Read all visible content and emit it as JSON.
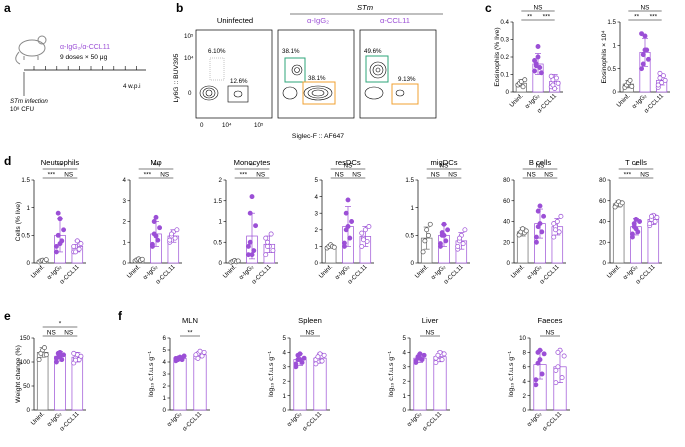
{
  "figure": {
    "panel_letters": [
      "a",
      "b",
      "c",
      "d",
      "e",
      "f"
    ],
    "colors": {
      "uninf": "#666666",
      "igg": "#9b4fd6",
      "ccl11": "#9b4fd6",
      "gate_green": "#2ea57a",
      "gate_orange": "#f0a030",
      "black": "#000000"
    }
  },
  "panel_a": {
    "treatment": "α-IgG₂/α-CCL11",
    "dosing": "9 doses × 50 μg",
    "infection_line1": "STm infection",
    "infection_line2": "10⁸ CFU",
    "endpoint": "4 w.p.i"
  },
  "panel_b": {
    "header_stm": "STm",
    "columns": [
      "Uninfected",
      "α-IgG₂",
      "α-CCL11"
    ],
    "y_axis": "Ly6G :: BUV395",
    "x_axis": "Siglec-F :: AF647",
    "x_ticks": [
      "0",
      "10⁴",
      "10⁵"
    ],
    "y_ticks": [
      "10⁵",
      "10⁴",
      "0"
    ],
    "gates": [
      {
        "top": "6.10%",
        "bottom": "12.6%"
      },
      {
        "top": "38.1%",
        "bottom": "38.1%"
      },
      {
        "top": "49.6%",
        "bottom": "9.13%"
      }
    ]
  },
  "chart_data": [
    {
      "id": "c1",
      "type": "bar",
      "title": "",
      "ylabel": "Eosinophils (% live)",
      "ylim": [
        0,
        0.4
      ],
      "yticks": [
        0,
        0.1,
        0.2,
        0.3,
        0.4
      ],
      "categories": [
        "Uninf.",
        "α-IgG₂",
        "α-CCL11"
      ],
      "values": [
        0.05,
        0.16,
        0.06
      ],
      "errors": [
        0.02,
        0.06,
        0.04
      ],
      "points": [
        [
          0.04,
          0.05,
          0.06,
          0.03,
          0.07
        ],
        [
          0.12,
          0.16,
          0.26,
          0.14,
          0.11,
          0.18,
          0.15,
          0.2
        ],
        [
          0.03,
          0.07,
          0.02,
          0.08,
          0.05,
          0.09,
          0.04
        ]
      ],
      "sig": [
        {
          "from": 0,
          "to": 2,
          "label": "NS",
          "level": 2
        },
        {
          "from": 0,
          "to": 1,
          "label": "**",
          "level": 1
        },
        {
          "from": 1,
          "to": 2,
          "label": "***",
          "level": 1
        }
      ]
    },
    {
      "id": "c2",
      "type": "bar",
      "title": "",
      "ylabel": "Eosinophils × 10⁴",
      "ylim": [
        0,
        1.5
      ],
      "yticks": [
        0,
        0.5,
        1.0,
        1.5
      ],
      "categories": [
        "Uninf.",
        "α-IgG₂",
        "α-CCL11"
      ],
      "values": [
        0.17,
        0.85,
        0.25
      ],
      "errors": [
        0.08,
        0.3,
        0.1
      ],
      "points": [
        [
          0.1,
          0.15,
          0.2,
          0.25,
          0.12
        ],
        [
          0.5,
          0.8,
          1.2,
          0.9,
          0.7,
          1.25,
          0.6,
          0.9
        ],
        [
          0.1,
          0.3,
          0.2,
          0.35,
          0.25,
          0.15,
          0.4
        ]
      ],
      "sig": [
        {
          "from": 0,
          "to": 2,
          "label": "NS",
          "level": 2
        },
        {
          "from": 0,
          "to": 1,
          "label": "**",
          "level": 1
        },
        {
          "from": 1,
          "to": 2,
          "label": "***",
          "level": 1
        }
      ]
    },
    {
      "id": "d1",
      "type": "bar",
      "title": "Neutrophils",
      "ylabel": "Cells (% live)",
      "ylim": [
        0,
        1.5
      ],
      "yticks": [
        0,
        0.5,
        1.0,
        1.5
      ],
      "categories": [
        "Uninf.",
        "α-IgG₂",
        "α-CCL11"
      ],
      "values": [
        0.04,
        0.5,
        0.3
      ],
      "errors": [
        0.02,
        0.3,
        0.1
      ],
      "points": [
        [
          0.02,
          0.04,
          0.05,
          0.03,
          0.06
        ],
        [
          0.2,
          0.5,
          0.8,
          0.4,
          0.6,
          0.3,
          0.9,
          0.35
        ],
        [
          0.2,
          0.3,
          0.4,
          0.25,
          0.35,
          0.3,
          0.2
        ]
      ],
      "sig": [
        {
          "from": 0,
          "to": 2,
          "label": "**",
          "level": 2
        },
        {
          "from": 0,
          "to": 1,
          "label": "***",
          "level": 1
        },
        {
          "from": 1,
          "to": 2,
          "label": "NS",
          "level": 1
        }
      ]
    },
    {
      "id": "d2",
      "type": "bar",
      "title": "Mφ",
      "ylabel": "",
      "ylim": [
        0,
        4
      ],
      "yticks": [
        0,
        1,
        2,
        3,
        4
      ],
      "categories": [
        "Uninf.",
        "α-IgG₂",
        "α-CCL11"
      ],
      "values": [
        0.15,
        1.4,
        1.3
      ],
      "errors": [
        0.1,
        0.6,
        0.3
      ],
      "points": [
        [
          0.1,
          0.15,
          0.2,
          0.12,
          0.18
        ],
        [
          0.9,
          1.4,
          2.2,
          1.1,
          1.7,
          0.8,
          2.0,
          1.3
        ],
        [
          1.0,
          1.3,
          1.5,
          1.2,
          1.6,
          1.1,
          1.4
        ]
      ],
      "sig": [
        {
          "from": 0,
          "to": 2,
          "label": "**",
          "level": 2
        },
        {
          "from": 0,
          "to": 1,
          "label": "***",
          "level": 1
        },
        {
          "from": 1,
          "to": 2,
          "label": "NS",
          "level": 1
        }
      ]
    },
    {
      "id": "d3",
      "type": "bar",
      "title": "Monocytes",
      "ylabel": "",
      "ylim": [
        0,
        2.0
      ],
      "yticks": [
        0,
        0.5,
        1.0,
        1.5,
        2.0
      ],
      "categories": [
        "Uninf.",
        "α-IgG₂",
        "α-CCL11"
      ],
      "values": [
        0.04,
        0.65,
        0.45
      ],
      "errors": [
        0.02,
        0.55,
        0.2
      ],
      "points": [
        [
          0.02,
          0.04,
          0.06,
          0.03,
          0.05
        ],
        [
          0.2,
          0.5,
          1.6,
          0.3,
          0.9,
          0.4,
          1.2,
          0.2
        ],
        [
          0.2,
          0.5,
          0.4,
          0.7,
          0.3,
          0.6,
          0.4
        ]
      ],
      "sig": [
        {
          "from": 0,
          "to": 2,
          "label": "**",
          "level": 2
        },
        {
          "from": 0,
          "to": 1,
          "label": "***",
          "level": 1
        },
        {
          "from": 1,
          "to": 2,
          "label": "NS",
          "level": 1
        }
      ]
    },
    {
      "id": "d4",
      "type": "bar",
      "title": "resDCs",
      "ylabel": "",
      "ylim": [
        0,
        5
      ],
      "yticks": [
        0,
        1,
        2,
        3,
        4,
        5
      ],
      "categories": [
        "Uninf.",
        "α-IgG₂",
        "α-CCL11"
      ],
      "values": [
        1.0,
        2.2,
        1.6
      ],
      "errors": [
        0.1,
        1.2,
        0.6
      ],
      "points": [
        [
          0.9,
          1.0,
          1.1,
          1.0,
          0.95
        ],
        [
          1.0,
          2.0,
          3.8,
          1.5,
          2.5,
          1.2,
          3.0,
          2.2
        ],
        [
          1.0,
          1.5,
          2.0,
          1.3,
          2.2,
          1.8,
          1.4
        ]
      ],
      "sig": [
        {
          "from": 0,
          "to": 2,
          "label": "NS",
          "level": 2
        },
        {
          "from": 0,
          "to": 1,
          "label": "NS",
          "level": 1
        },
        {
          "from": 1,
          "to": 2,
          "label": "NS",
          "level": 1
        }
      ]
    },
    {
      "id": "d5",
      "type": "bar",
      "title": "migDCs",
      "ylabel": "",
      "ylim": [
        0,
        1.5
      ],
      "yticks": [
        0,
        0.5,
        1.0,
        1.5
      ],
      "categories": [
        "Uninf.",
        "α-IgG₂",
        "α-CCL11"
      ],
      "values": [
        0.45,
        0.5,
        0.4
      ],
      "errors": [
        0.2,
        0.2,
        0.15
      ],
      "points": [
        [
          0.2,
          0.4,
          0.6,
          0.5,
          0.7
        ],
        [
          0.3,
          0.5,
          0.7,
          0.4,
          0.6,
          0.35,
          0.55,
          0.5
        ],
        [
          0.25,
          0.4,
          0.5,
          0.35,
          0.6,
          0.3,
          0.45
        ]
      ],
      "sig": [
        {
          "from": 0,
          "to": 2,
          "label": "NS",
          "level": 2
        },
        {
          "from": 0,
          "to": 1,
          "label": "NS",
          "level": 1
        },
        {
          "from": 1,
          "to": 2,
          "label": "NS",
          "level": 1
        }
      ]
    },
    {
      "id": "d6",
      "type": "bar",
      "title": "B cells",
      "ylabel": "",
      "ylim": [
        0,
        80
      ],
      "yticks": [
        0,
        20,
        40,
        60,
        80
      ],
      "categories": [
        "Uninf.",
        "α-IgG₂",
        "α-CCL11"
      ],
      "values": [
        30,
        38,
        35
      ],
      "errors": [
        4,
        14,
        8
      ],
      "points": [
        [
          27,
          30,
          33,
          29,
          31
        ],
        [
          20,
          35,
          55,
          30,
          45,
          25,
          50,
          38
        ],
        [
          25,
          35,
          40,
          30,
          45,
          38,
          32
        ]
      ],
      "sig": [
        {
          "from": 0,
          "to": 2,
          "label": "NS",
          "level": 2
        },
        {
          "from": 0,
          "to": 1,
          "label": "NS",
          "level": 1
        },
        {
          "from": 1,
          "to": 2,
          "label": "NS",
          "level": 1
        }
      ]
    },
    {
      "id": "d7",
      "type": "bar",
      "title": "T cells",
      "ylabel": "",
      "ylim": [
        0,
        80
      ],
      "yticks": [
        0,
        20,
        40,
        60,
        80
      ],
      "categories": [
        "Uninf.",
        "α-IgG₂",
        "α-CCL11"
      ],
      "values": [
        57,
        35,
        42
      ],
      "errors": [
        3,
        8,
        5
      ],
      "points": [
        [
          54,
          57,
          59,
          56,
          58
        ],
        [
          25,
          35,
          42,
          30,
          40,
          28,
          38,
          33
        ],
        [
          36,
          42,
          46,
          40,
          44,
          38,
          45
        ]
      ],
      "sig": [
        {
          "from": 0,
          "to": 2,
          "label": "*",
          "level": 2
        },
        {
          "from": 0,
          "to": 1,
          "label": "***",
          "level": 1
        },
        {
          "from": 1,
          "to": 2,
          "label": "NS",
          "level": 1
        }
      ]
    },
    {
      "id": "e1",
      "type": "bar",
      "title": "",
      "ylabel": "Weight change (%)",
      "ylim": [
        0,
        150
      ],
      "yticks": [
        0,
        50,
        100,
        150
      ],
      "categories": [
        "Uninf.",
        "α-IgG₂",
        "α-CCL11"
      ],
      "values": [
        120,
        112,
        110
      ],
      "errors": [
        10,
        10,
        10
      ],
      "points": [
        [
          105,
          118,
          125,
          130,
          115
        ],
        [
          100,
          110,
          120,
          105,
          115,
          108,
          118,
          112
        ],
        [
          98,
          108,
          115,
          105,
          112,
          118,
          104
        ]
      ],
      "sig": [
        {
          "from": 0,
          "to": 2,
          "label": "*",
          "level": 2
        },
        {
          "from": 0,
          "to": 1,
          "label": "NS",
          "level": 1
        },
        {
          "from": 1,
          "to": 2,
          "label": "NS",
          "level": 1
        }
      ]
    },
    {
      "id": "f1",
      "type": "bar",
      "title": "MLN",
      "ylabel": "log₁₀ c.f.u.s g⁻¹",
      "ylim": [
        0,
        6
      ],
      "yticks": [
        0,
        1,
        2,
        3,
        4,
        5,
        6
      ],
      "categories": [
        "α-IgG₂",
        "α-CCL11"
      ],
      "values": [
        4.3,
        4.6
      ],
      "errors": [
        0.2,
        0.25
      ],
      "points": [
        [
          4.1,
          4.3,
          4.4,
          4.2,
          4.5,
          4.3,
          4.2,
          4.4
        ],
        [
          4.4,
          4.7,
          4.9,
          4.5,
          4.8,
          4.6,
          4.3
        ]
      ],
      "sig": [
        {
          "from": 0,
          "to": 1,
          "label": "**",
          "level": 1
        }
      ]
    },
    {
      "id": "f2",
      "type": "bar",
      "title": "Spleen",
      "ylabel": "log₁₀ c.f.u.s g⁻¹",
      "ylim": [
        0,
        5
      ],
      "yticks": [
        0,
        1,
        2,
        3,
        4,
        5
      ],
      "categories": [
        "α-IgG₂",
        "α-CCL11"
      ],
      "values": [
        3.5,
        3.6
      ],
      "errors": [
        0.4,
        0.35
      ],
      "points": [
        [
          3.0,
          3.5,
          3.9,
          3.3,
          3.6,
          3.2,
          3.8,
          3.5
        ],
        [
          3.2,
          3.6,
          3.9,
          3.4,
          3.8,
          3.5,
          3.7
        ]
      ],
      "sig": [
        {
          "from": 0,
          "to": 1,
          "label": "NS",
          "level": 1
        }
      ]
    },
    {
      "id": "f3",
      "type": "bar",
      "title": "Liver",
      "ylabel": "log₁₀ c.f.u.s g⁻¹",
      "ylim": [
        0,
        5
      ],
      "yticks": [
        0,
        1,
        2,
        3,
        4,
        5
      ],
      "categories": [
        "α-IgG₂",
        "α-CCL11"
      ],
      "values": [
        3.6,
        3.7
      ],
      "errors": [
        0.3,
        0.35
      ],
      "points": [
        [
          3.3,
          3.6,
          3.9,
          3.5,
          3.8,
          3.4,
          3.7,
          3.6
        ],
        [
          3.3,
          3.7,
          4.0,
          3.5,
          3.9,
          3.6,
          3.8
        ]
      ],
      "sig": [
        {
          "from": 0,
          "to": 1,
          "label": "NS",
          "level": 1
        }
      ]
    },
    {
      "id": "f4",
      "type": "bar",
      "title": "Faeces",
      "ylabel": "log₁₀ c.f.u.s g⁻¹",
      "ylim": [
        0,
        10
      ],
      "yticks": [
        0,
        2,
        4,
        6,
        8,
        10
      ],
      "categories": [
        "α-IgG₂",
        "α-CCL11"
      ],
      "values": [
        6.3,
        6.0
      ],
      "errors": [
        2.0,
        2.2
      ],
      "points": [
        [
          3.5,
          6.5,
          8.3,
          5.0,
          7.8,
          4.2,
          8.0,
          7.0
        ],
        [
          3.8,
          6.0,
          8.3,
          4.5,
          7.5,
          5.5,
          8.0
        ]
      ],
      "sig": [
        {
          "from": 0,
          "to": 1,
          "label": "NS",
          "level": 1
        }
      ]
    }
  ]
}
